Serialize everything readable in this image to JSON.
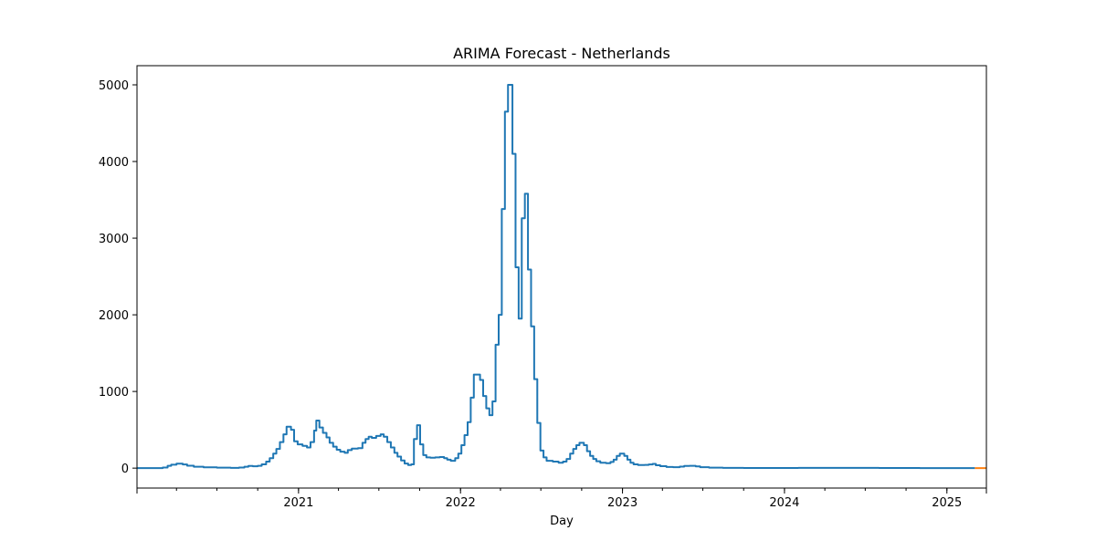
{
  "chart_data": {
    "type": "line",
    "title": "ARIMA Forecast - Netherlands",
    "xlabel": "Day",
    "ylabel": "",
    "x_axis": {
      "start": "2020-01-03",
      "end": "2025-03-31",
      "ticks": [
        "2021-01-01",
        "2022-01-01",
        "2023-01-01",
        "2024-01-01",
        "2025-01-01"
      ],
      "tick_labels": [
        "2021",
        "2022",
        "2023",
        "2024",
        "2025"
      ]
    },
    "y_axis": {
      "ylim": [
        -260,
        5250
      ],
      "ticks": [
        0,
        1000,
        2000,
        3000,
        4000,
        5000
      ],
      "tick_labels": [
        "0",
        "1000",
        "2000",
        "3000",
        "4000",
        "5000"
      ]
    },
    "grid": false,
    "series": [
      {
        "color": "#1f77b4",
        "interpolation": "step",
        "points": [
          [
            "2020-01-03",
            0
          ],
          [
            "2020-02-05",
            0
          ],
          [
            "2020-03-01",
            8
          ],
          [
            "2020-03-12",
            30
          ],
          [
            "2020-03-20",
            45
          ],
          [
            "2020-04-01",
            58
          ],
          [
            "2020-04-15",
            48
          ],
          [
            "2020-04-25",
            32
          ],
          [
            "2020-05-10",
            18
          ],
          [
            "2020-06-01",
            10
          ],
          [
            "2020-07-01",
            6
          ],
          [
            "2020-08-01",
            4
          ],
          [
            "2020-08-20",
            8
          ],
          [
            "2020-09-01",
            18
          ],
          [
            "2020-09-10",
            28
          ],
          [
            "2020-09-20",
            24
          ],
          [
            "2020-10-01",
            30
          ],
          [
            "2020-10-10",
            50
          ],
          [
            "2020-10-20",
            85
          ],
          [
            "2020-10-28",
            130
          ],
          [
            "2020-11-05",
            190
          ],
          [
            "2020-11-12",
            250
          ],
          [
            "2020-11-20",
            340
          ],
          [
            "2020-11-28",
            440
          ],
          [
            "2020-12-05",
            540
          ],
          [
            "2020-12-15",
            500
          ],
          [
            "2020-12-22",
            350
          ],
          [
            "2020-12-30",
            310
          ],
          [
            "2021-01-10",
            290
          ],
          [
            "2021-01-20",
            270
          ],
          [
            "2021-01-28",
            340
          ],
          [
            "2021-02-05",
            490
          ],
          [
            "2021-02-10",
            620
          ],
          [
            "2021-02-17",
            530
          ],
          [
            "2021-02-25",
            460
          ],
          [
            "2021-03-05",
            400
          ],
          [
            "2021-03-12",
            330
          ],
          [
            "2021-03-20",
            280
          ],
          [
            "2021-03-28",
            240
          ],
          [
            "2021-04-05",
            215
          ],
          [
            "2021-04-15",
            200
          ],
          [
            "2021-04-22",
            235
          ],
          [
            "2021-05-01",
            255
          ],
          [
            "2021-05-15",
            260
          ],
          [
            "2021-05-25",
            330
          ],
          [
            "2021-06-01",
            380
          ],
          [
            "2021-06-08",
            410
          ],
          [
            "2021-06-15",
            395
          ],
          [
            "2021-06-25",
            420
          ],
          [
            "2021-07-05",
            440
          ],
          [
            "2021-07-12",
            410
          ],
          [
            "2021-07-20",
            340
          ],
          [
            "2021-07-28",
            270
          ],
          [
            "2021-08-05",
            200
          ],
          [
            "2021-08-12",
            150
          ],
          [
            "2021-08-20",
            100
          ],
          [
            "2021-08-28",
            60
          ],
          [
            "2021-09-05",
            40
          ],
          [
            "2021-09-12",
            50
          ],
          [
            "2021-09-18",
            380
          ],
          [
            "2021-09-25",
            560
          ],
          [
            "2021-10-02",
            310
          ],
          [
            "2021-10-09",
            170
          ],
          [
            "2021-10-16",
            140
          ],
          [
            "2021-10-25",
            135
          ],
          [
            "2021-11-05",
            140
          ],
          [
            "2021-11-15",
            145
          ],
          [
            "2021-11-25",
            130
          ],
          [
            "2021-12-02",
            110
          ],
          [
            "2021-12-10",
            95
          ],
          [
            "2021-12-20",
            130
          ],
          [
            "2021-12-27",
            190
          ],
          [
            "2022-01-03",
            300
          ],
          [
            "2022-01-10",
            430
          ],
          [
            "2022-01-17",
            600
          ],
          [
            "2022-01-24",
            920
          ],
          [
            "2022-01-31",
            1220
          ],
          [
            "2022-02-14",
            1150
          ],
          [
            "2022-02-21",
            940
          ],
          [
            "2022-02-28",
            780
          ],
          [
            "2022-03-07",
            690
          ],
          [
            "2022-03-14",
            870
          ],
          [
            "2022-03-21",
            1610
          ],
          [
            "2022-03-28",
            2000
          ],
          [
            "2022-04-04",
            3380
          ],
          [
            "2022-04-11",
            4650
          ],
          [
            "2022-04-18",
            5000
          ],
          [
            "2022-04-28",
            4100
          ],
          [
            "2022-05-05",
            2620
          ],
          [
            "2022-05-12",
            1950
          ],
          [
            "2022-05-19",
            3260
          ],
          [
            "2022-05-26",
            3580
          ],
          [
            "2022-06-02",
            2590
          ],
          [
            "2022-06-09",
            1850
          ],
          [
            "2022-06-16",
            1160
          ],
          [
            "2022-06-23",
            590
          ],
          [
            "2022-06-30",
            230
          ],
          [
            "2022-07-07",
            140
          ],
          [
            "2022-07-14",
            95
          ],
          [
            "2022-07-28",
            85
          ],
          [
            "2022-08-10",
            70
          ],
          [
            "2022-08-20",
            85
          ],
          [
            "2022-08-28",
            120
          ],
          [
            "2022-09-05",
            190
          ],
          [
            "2022-09-12",
            250
          ],
          [
            "2022-09-19",
            300
          ],
          [
            "2022-09-26",
            330
          ],
          [
            "2022-10-06",
            300
          ],
          [
            "2022-10-13",
            220
          ],
          [
            "2022-10-20",
            160
          ],
          [
            "2022-10-27",
            120
          ],
          [
            "2022-11-03",
            90
          ],
          [
            "2022-11-12",
            70
          ],
          [
            "2022-11-25",
            65
          ],
          [
            "2022-12-05",
            80
          ],
          [
            "2022-12-12",
            110
          ],
          [
            "2022-12-19",
            160
          ],
          [
            "2022-12-26",
            190
          ],
          [
            "2023-01-05",
            160
          ],
          [
            "2023-01-12",
            110
          ],
          [
            "2023-01-19",
            70
          ],
          [
            "2023-01-26",
            50
          ],
          [
            "2023-02-05",
            40
          ],
          [
            "2023-02-20",
            42
          ],
          [
            "2023-03-01",
            48
          ],
          [
            "2023-03-10",
            55
          ],
          [
            "2023-03-17",
            38
          ],
          [
            "2023-03-27",
            25
          ],
          [
            "2023-04-10",
            15
          ],
          [
            "2023-04-25",
            12
          ],
          [
            "2023-05-10",
            20
          ],
          [
            "2023-05-20",
            28
          ],
          [
            "2023-06-01",
            30
          ],
          [
            "2023-06-15",
            22
          ],
          [
            "2023-06-25",
            12
          ],
          [
            "2023-07-15",
            6
          ],
          [
            "2023-08-15",
            3
          ],
          [
            "2023-10-01",
            2
          ],
          [
            "2023-12-01",
            2
          ],
          [
            "2024-02-01",
            3
          ],
          [
            "2024-04-01",
            4
          ],
          [
            "2024-06-01",
            3
          ],
          [
            "2024-08-01",
            2
          ],
          [
            "2024-11-01",
            1
          ],
          [
            "2025-02-01",
            0
          ],
          [
            "2025-03-05",
            0
          ]
        ]
      },
      {
        "color": "#ff7f0e",
        "interpolation": "linear",
        "points": [
          [
            "2025-03-05",
            0
          ],
          [
            "2025-03-31",
            0
          ]
        ]
      }
    ]
  }
}
